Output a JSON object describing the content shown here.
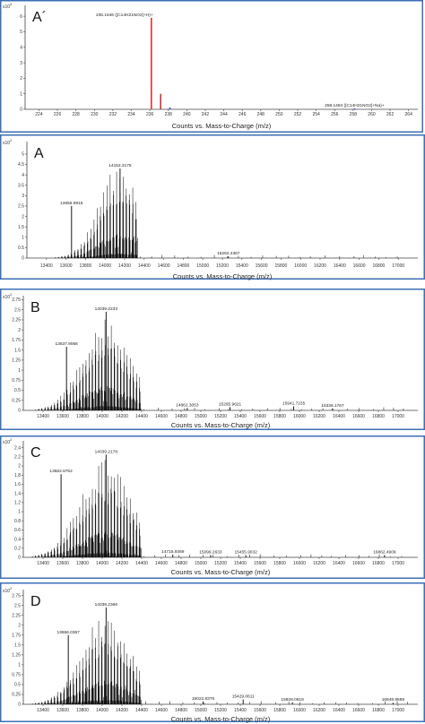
{
  "chart_data": [
    {
      "type": "bar",
      "panel_label": "A´",
      "y_exponent": "x10",
      "y_exp_power": "4",
      "xlabel": "Counts vs. Mass-to-Charge (m/z)",
      "xlim": [
        222.5,
        265
      ],
      "ylim": [
        0,
        6.7
      ],
      "x_ticks": [
        224,
        226,
        228,
        230,
        232,
        234,
        236,
        238,
        240,
        242,
        244,
        246,
        248,
        250,
        252,
        254,
        256,
        258,
        260,
        262,
        264
      ],
      "y_ticks": [
        0,
        1,
        2,
        3,
        4,
        5,
        6
      ],
      "peaks": [
        {
          "x": 236.1646,
          "y": 5.9,
          "color": "#d0343a"
        },
        {
          "x": 237.17,
          "y": 1.0,
          "color": "#d0343a"
        },
        {
          "x": 238.17,
          "y": 0.12,
          "color": "#3a3ad0"
        },
        {
          "x": 258.1484,
          "y": 0.06,
          "color": "#3a3ad0"
        }
      ],
      "annotations": [
        {
          "x": 236.1646,
          "y": 5.9,
          "text": "236.1646 ([C14H21NO2]+H)+"
        },
        {
          "x": 258.1484,
          "y": 0.06,
          "text": "258.1484 ([C14H21NO2]+Na)+"
        }
      ]
    },
    {
      "type": "bar",
      "panel_label": "A",
      "y_exponent": "x10",
      "y_exp_power": "2",
      "xlabel": "Counts vs. Mass-to-Charge (m/z)",
      "xlim": [
        13200,
        17200
      ],
      "ylim": [
        0,
        5.6
      ],
      "x_ticks": [
        13400,
        13600,
        13800,
        14000,
        14200,
        14400,
        14600,
        14800,
        15000,
        15200,
        15400,
        15600,
        15800,
        16000,
        16200,
        16400,
        16600,
        16800,
        17000
      ],
      "y_ticks": [
        0,
        0.5,
        1,
        1.5,
        2,
        2.5,
        3,
        3.5,
        4,
        4.5,
        5
      ],
      "envelope": {
        "start": 13260,
        "end": 14320,
        "spacing": 33,
        "peak_center": 14153,
        "width": 300,
        "max": 4.5
      },
      "peaks": [
        {
          "x": 14153.3175,
          "y": 4.3
        },
        {
          "x": 13656.9915,
          "y": 2.5
        },
        {
          "x": 15262.4367,
          "y": 0.08
        }
      ],
      "annotations": [
        {
          "x": 14153.3175,
          "y": 4.3,
          "text": "14153.3175"
        },
        {
          "x": 13656.9915,
          "y": 2.5,
          "text": "13656.9915"
        },
        {
          "x": 15262.4367,
          "y": 0.08,
          "text": "15262.4367"
        }
      ]
    },
    {
      "type": "bar",
      "panel_label": "B",
      "y_exponent": "x10",
      "y_exp_power": "2",
      "xlabel": "Counts vs. Mass-to-Charge (m/z)",
      "xlim": [
        13200,
        17200
      ],
      "ylim": [
        0,
        2.85
      ],
      "x_ticks": [
        13400,
        13600,
        13800,
        14000,
        14200,
        14400,
        14600,
        14800,
        15000,
        15200,
        15400,
        15600,
        15800,
        16000,
        16200,
        16400,
        16600,
        16800,
        17000
      ],
      "y_ticks": [
        0,
        0.25,
        0.5,
        0.75,
        1,
        1.25,
        1.5,
        1.75,
        2,
        2.25,
        2.5,
        2.75
      ],
      "envelope": {
        "start": 13260,
        "end": 14380,
        "spacing": 32,
        "peak_center": 14039,
        "width": 340,
        "max": 2.3
      },
      "peaks": [
        {
          "x": 14039.2233,
          "y": 2.45
        },
        {
          "x": 13637.9066,
          "y": 1.58
        },
        {
          "x": 14862.3053,
          "y": 0.06
        },
        {
          "x": 15295.9621,
          "y": 0.08
        },
        {
          "x": 15941.7235,
          "y": 0.1
        },
        {
          "x": 16336.1767,
          "y": 0.05
        }
      ],
      "annotations": [
        {
          "x": 14039.2233,
          "y": 2.45,
          "text": "14039.2233"
        },
        {
          "x": 13637.9066,
          "y": 1.58,
          "text": "13637.9066"
        },
        {
          "x": 14862.3053,
          "y": 0.06,
          "text": "14862.3053"
        },
        {
          "x": 15295.9621,
          "y": 0.08,
          "text": "15295.9621"
        },
        {
          "x": 15941.7235,
          "y": 0.1,
          "text": "15941.7235"
        },
        {
          "x": 16336.1767,
          "y": 0.05,
          "text": "16336.1767"
        }
      ]
    },
    {
      "type": "bar",
      "panel_label": "C",
      "y_exponent": "x10",
      "y_exp_power": "2",
      "xlabel": "Counts vs. Mass-to-Charge (m/z)",
      "xlim": [
        13200,
        17200
      ],
      "ylim": [
        0,
        2.55
      ],
      "x_ticks": [
        13400,
        13600,
        13800,
        14000,
        14200,
        14400,
        14600,
        14800,
        15000,
        15200,
        15400,
        15600,
        15800,
        16000,
        16200,
        16400,
        16600,
        16800,
        17000
      ],
      "y_ticks": [
        0,
        0.2,
        0.4,
        0.6,
        0.8,
        1,
        1.2,
        1.4,
        1.6,
        1.8,
        2,
        2.2,
        2.4
      ],
      "envelope": {
        "start": 13260,
        "end": 14380,
        "spacing": 32,
        "peak_center": 14039,
        "width": 360,
        "max": 2.15
      },
      "peaks": [
        {
          "x": 14039.2178,
          "y": 2.25
        },
        {
          "x": 13582.6762,
          "y": 1.82
        },
        {
          "x": 14715.9369,
          "y": 0.06
        },
        {
          "x": 15099.2633,
          "y": 0.05
        },
        {
          "x": 15455.9032,
          "y": 0.05
        },
        {
          "x": 16862.4909,
          "y": 0.05
        }
      ],
      "annotations": [
        {
          "x": 14039.2178,
          "y": 2.25,
          "text": "14039.2178"
        },
        {
          "x": 13582.6762,
          "y": 1.82,
          "text": "13582.6762"
        },
        {
          "x": 14715.9369,
          "y": 0.06,
          "text": "14715.9369"
        },
        {
          "x": 15099.2633,
          "y": 0.05,
          "text": "15099.2633"
        },
        {
          "x": 15455.9032,
          "y": 0.05,
          "text": "15455.9032"
        },
        {
          "x": 16862.4909,
          "y": 0.05,
          "text": "16862.4909"
        }
      ]
    },
    {
      "type": "bar",
      "panel_label": "D",
      "y_exponent": "x10",
      "y_exp_power": "2",
      "xlabel": "Counts vs. Mass-to-Charge (m/z)",
      "xlim": [
        13200,
        17200
      ],
      "ylim": [
        0,
        2.9
      ],
      "x_ticks": [
        13400,
        13600,
        13800,
        14000,
        14200,
        14400,
        14600,
        14800,
        15000,
        15200,
        15400,
        15600,
        15800,
        16000,
        16200,
        16400,
        16600,
        16800,
        17000
      ],
      "y_ticks": [
        0,
        0.25,
        0.5,
        0.75,
        1,
        1.25,
        1.5,
        1.75,
        2,
        2.25,
        2.5,
        2.75
      ],
      "envelope": {
        "start": 13260,
        "end": 14400,
        "spacing": 32,
        "peak_center": 14039,
        "width": 350,
        "max": 2.3
      },
      "peaks": [
        {
          "x": 14039.2366,
          "y": 2.45
        },
        {
          "x": 13656.0367,
          "y": 1.75
        },
        {
          "x": 15022.8376,
          "y": 0.07
        },
        {
          "x": 15429.0611,
          "y": 0.12
        },
        {
          "x": 15928.0618,
          "y": 0.05
        },
        {
          "x": 16948.9569,
          "y": 0.04
        }
      ],
      "annotations": [
        {
          "x": 14039.2366,
          "y": 2.45,
          "text": "14039.2366"
        },
        {
          "x": 13656.0367,
          "y": 1.75,
          "text": "13656.0367"
        },
        {
          "x": 15022.8376,
          "y": 0.07,
          "text": "15022.8376"
        },
        {
          "x": 15429.0611,
          "y": 0.12,
          "text": "15429.0611"
        },
        {
          "x": 15928.0618,
          "y": 0.05,
          "text": "15928.0618"
        },
        {
          "x": 16948.9569,
          "y": 0.04,
          "text": "16948.9569"
        }
      ]
    }
  ]
}
